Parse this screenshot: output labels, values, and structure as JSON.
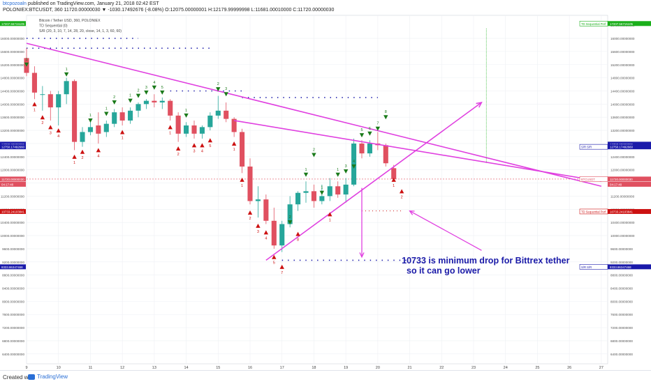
{
  "header": {
    "author": "btcpozoaln",
    "published": "published on TradingView.com, January 21, 2018 02:42 EST",
    "symbol_line": "POLONIEX:BTCUSDT, 360  11720.00000030 ▼ -1030.17492676 (-8.08%) O:12075.00000001 H:12179.99999998 L:11681.00010000 C:11720.00000030"
  },
  "chart": {
    "legend": [
      "Bitcoin / Tether USD, 360, POLONIEX",
      "TD Sequential (0)",
      "S/R (20, 3, 10, 7, 14, 28, 20, close, 14, 1, 3, 60, 60)"
    ],
    "annotation": [
      "10733 is minimum drop for Bittrex tether",
      "so it can go lower"
    ],
    "colors": {
      "bull": "#26a69a",
      "bear": "#e05060",
      "trendline": "#e040e0",
      "annotation": "#1a1aa8",
      "buy_setup": "#cc1111",
      "sell_setup": "#1a7a1a"
    }
  },
  "chart_data": {
    "type": "candlestick",
    "ylim": [
      6100,
      16700
    ],
    "y_ticks": [
      "16000.00000000",
      "15600.00000000",
      "15200.00000000",
      "14800.00000000",
      "14400.00000000",
      "14000.00000000",
      "13600.00000000",
      "13200.00000000",
      "12800.00000000",
      "12400.00000000",
      "12000.00000000",
      "11600.00000000",
      "11200.00000000",
      "10800.00000000",
      "10400.00000000",
      "10000.00000000",
      "9600.00000000",
      "9200.00000000",
      "8800.00000000",
      "8400.00000000",
      "8000.00000000",
      "7600.00000000",
      "7200.00000000",
      "6800.00000000",
      "6400.00000000"
    ],
    "right_y_ticks": [
      "16400.00000000",
      "16000.00000000",
      "15600.00000000",
      "15200.00000000",
      "14800.00000000",
      "14400.00000000",
      "14000.00000000",
      "13600.00000000",
      "13200.00000000",
      "12800.00000000",
      "12400.00000000",
      "12000.00000000",
      "11600.00000000",
      "11200.00000000",
      "10800.00000000",
      "10400.00000000",
      "10000.00000000",
      "9600.00000000",
      "9200.00000000",
      "8800.00000000",
      "8400.00000000",
      "8000.00000000",
      "7600.00000000",
      "7200.00000000",
      "6800.00000000",
      "6400.00000000"
    ],
    "x_ticks": [
      "9",
      "10",
      "11",
      "12",
      "13",
      "14",
      "15",
      "16",
      "17",
      "18",
      "19",
      "20",
      "21",
      "22",
      "23",
      "24",
      "25",
      "26",
      "27"
    ],
    "x_tick_days": [
      9,
      10,
      11,
      12,
      13,
      14,
      15,
      16,
      17,
      18,
      19,
      20,
      21,
      22,
      23,
      24,
      25,
      26,
      27
    ],
    "candles": [
      {
        "day": 9.0,
        "o": 15400,
        "h": 15700,
        "l": 14850,
        "c": 14950
      },
      {
        "day": 9.25,
        "o": 14950,
        "h": 15150,
        "l": 14150,
        "c": 14350
      },
      {
        "day": 9.5,
        "o": 14300,
        "h": 14550,
        "l": 13800,
        "c": 14300
      },
      {
        "day": 9.75,
        "o": 14300,
        "h": 14400,
        "l": 13500,
        "c": 13900
      },
      {
        "day": 10.0,
        "o": 13900,
        "h": 14400,
        "l": 13350,
        "c": 14300
      },
      {
        "day": 10.25,
        "o": 14300,
        "h": 14800,
        "l": 14000,
        "c": 14700
      },
      {
        "day": 10.5,
        "o": 14700,
        "h": 14750,
        "l": 12600,
        "c": 12850
      },
      {
        "day": 10.75,
        "o": 12850,
        "h": 13300,
        "l": 12700,
        "c": 13150
      },
      {
        "day": 11.0,
        "o": 13150,
        "h": 13450,
        "l": 13050,
        "c": 13300
      },
      {
        "day": 11.25,
        "o": 13350,
        "h": 13750,
        "l": 12800,
        "c": 13100
      },
      {
        "day": 11.5,
        "o": 13150,
        "h": 13500,
        "l": 13000,
        "c": 13400
      },
      {
        "day": 11.75,
        "o": 13400,
        "h": 13850,
        "l": 13300,
        "c": 13750
      },
      {
        "day": 12.0,
        "o": 13750,
        "h": 13900,
        "l": 13350,
        "c": 13500
      },
      {
        "day": 12.25,
        "o": 13500,
        "h": 13900,
        "l": 13400,
        "c": 13800
      },
      {
        "day": 12.5,
        "o": 13800,
        "h": 14050,
        "l": 13600,
        "c": 14000
      },
      {
        "day": 12.75,
        "o": 14000,
        "h": 14150,
        "l": 13850,
        "c": 14100
      },
      {
        "day": 13.0,
        "o": 14100,
        "h": 14300,
        "l": 13900,
        "c": 14050
      },
      {
        "day": 13.25,
        "o": 14050,
        "h": 14200,
        "l": 13850,
        "c": 14100
      },
      {
        "day": 13.5,
        "o": 14100,
        "h": 14150,
        "l": 13500,
        "c": 13650
      },
      {
        "day": 13.75,
        "o": 13650,
        "h": 13750,
        "l": 12850,
        "c": 13100
      },
      {
        "day": 14.0,
        "o": 13100,
        "h": 13450,
        "l": 13000,
        "c": 13350
      },
      {
        "day": 14.25,
        "o": 13350,
        "h": 13500,
        "l": 12950,
        "c": 13100
      },
      {
        "day": 14.5,
        "o": 13100,
        "h": 13350,
        "l": 12950,
        "c": 13300
      },
      {
        "day": 14.75,
        "o": 13300,
        "h": 13750,
        "l": 13200,
        "c": 13650
      },
      {
        "day": 15.0,
        "o": 13650,
        "h": 14250,
        "l": 13550,
        "c": 13800
      },
      {
        "day": 15.25,
        "o": 13800,
        "h": 14050,
        "l": 13450,
        "c": 13550
      },
      {
        "day": 15.5,
        "o": 13550,
        "h": 13600,
        "l": 13000,
        "c": 13150
      },
      {
        "day": 15.75,
        "o": 13150,
        "h": 13250,
        "l": 11900,
        "c": 12100
      },
      {
        "day": 16.0,
        "o": 12100,
        "h": 12350,
        "l": 10950,
        "c": 11050
      },
      {
        "day": 16.25,
        "o": 11050,
        "h": 11500,
        "l": 10550,
        "c": 11100
      },
      {
        "day": 16.5,
        "o": 11100,
        "h": 11250,
        "l": 10350,
        "c": 10450
      },
      {
        "day": 16.75,
        "o": 10450,
        "h": 10850,
        "l": 9600,
        "c": 9700
      },
      {
        "day": 17.0,
        "o": 9700,
        "h": 10450,
        "l": 9500,
        "c": 10350
      },
      {
        "day": 17.25,
        "o": 10350,
        "h": 11200,
        "l": 10250,
        "c": 10950
      },
      {
        "day": 17.5,
        "o": 10950,
        "h": 11350,
        "l": 10750,
        "c": 11300
      },
      {
        "day": 17.75,
        "o": 11300,
        "h": 11650,
        "l": 11000,
        "c": 11350
      },
      {
        "day": 18.0,
        "o": 11350,
        "h": 11550,
        "l": 10850,
        "c": 11050
      },
      {
        "day": 18.25,
        "o": 11050,
        "h": 11550,
        "l": 10950,
        "c": 11200
      },
      {
        "day": 18.5,
        "o": 11200,
        "h": 11750,
        "l": 11050,
        "c": 11500
      },
      {
        "day": 18.75,
        "o": 11500,
        "h": 11650,
        "l": 11150,
        "c": 11250
      },
      {
        "day": 19.0,
        "o": 11250,
        "h": 11750,
        "l": 11000,
        "c": 11550
      },
      {
        "day": 19.25,
        "o": 11550,
        "h": 12950,
        "l": 11500,
        "c": 12800
      },
      {
        "day": 19.5,
        "o": 12800,
        "h": 12900,
        "l": 12350,
        "c": 12500
      },
      {
        "day": 19.75,
        "o": 12500,
        "h": 12900,
        "l": 12400,
        "c": 12800
      },
      {
        "day": 20.0,
        "o": 12800,
        "h": 13150,
        "l": 12600,
        "c": 12750
      },
      {
        "day": 20.25,
        "o": 12750,
        "h": 12800,
        "l": 12100,
        "c": 12200
      },
      {
        "day": 20.5,
        "o": 12050,
        "h": 12150,
        "l": 11650,
        "c": 11720
      }
    ],
    "markers": [
      {
        "day": 9.0,
        "y": 15200,
        "t": "sell",
        "n": "1"
      },
      {
        "day": 9.25,
        "y": 14000,
        "t": "buy",
        "n": "1"
      },
      {
        "day": 9.5,
        "y": 13600,
        "t": "buy",
        "n": "2"
      },
      {
        "day": 9.75,
        "y": 13300,
        "t": "buy",
        "n": "3"
      },
      {
        "day": 10.0,
        "y": 13200,
        "t": "buy",
        "n": "4"
      },
      {
        "day": 10.25,
        "y": 14900,
        "t": "sell",
        "n": "1"
      },
      {
        "day": 10.5,
        "y": 12400,
        "t": "buy",
        "n": "1"
      },
      {
        "day": 10.75,
        "y": 12550,
        "t": "buy",
        "n": "2"
      },
      {
        "day": 11.0,
        "y": 13500,
        "t": "sell",
        "n": "1"
      },
      {
        "day": 11.25,
        "y": 12600,
        "t": "buy",
        "n": "4"
      },
      {
        "day": 11.5,
        "y": 13700,
        "t": "sell",
        "n": "1"
      },
      {
        "day": 11.75,
        "y": 14050,
        "t": "sell",
        "n": "2"
      },
      {
        "day": 12.0,
        "y": 13150,
        "t": "buy",
        "n": "1"
      },
      {
        "day": 12.25,
        "y": 14100,
        "t": "sell",
        "n": "1"
      },
      {
        "day": 12.5,
        "y": 14250,
        "t": "sell",
        "n": "2"
      },
      {
        "day": 12.75,
        "y": 14350,
        "t": "sell",
        "n": "3"
      },
      {
        "day": 13.0,
        "y": 14500,
        "t": "sell",
        "n": "4"
      },
      {
        "day": 13.25,
        "y": 14350,
        "t": "sell",
        "n": "5"
      },
      {
        "day": 13.5,
        "y": 13300,
        "t": "buy",
        "n": "1"
      },
      {
        "day": 13.75,
        "y": 12650,
        "t": "buy",
        "n": "2"
      },
      {
        "day": 14.0,
        "y": 13650,
        "t": "sell",
        "n": "1"
      },
      {
        "day": 14.25,
        "y": 12750,
        "t": "buy",
        "n": "3"
      },
      {
        "day": 14.5,
        "y": 12750,
        "t": "buy",
        "n": "4"
      },
      {
        "day": 14.75,
        "y": 12900,
        "t": "buy",
        "n": "5"
      },
      {
        "day": 15.0,
        "y": 14450,
        "t": "sell",
        "n": "2"
      },
      {
        "day": 15.25,
        "y": 14300,
        "t": "sell",
        "n": "3"
      },
      {
        "day": 15.5,
        "y": 12800,
        "t": "buy",
        "n": "1"
      },
      {
        "day": 15.75,
        "y": 11700,
        "t": "buy",
        "n": "1"
      },
      {
        "day": 16.0,
        "y": 10700,
        "t": "buy",
        "n": "2"
      },
      {
        "day": 16.25,
        "y": 10300,
        "t": "buy",
        "n": "3"
      },
      {
        "day": 16.5,
        "y": 10100,
        "t": "buy",
        "n": "4"
      },
      {
        "day": 16.75,
        "y": 9350,
        "t": "buy",
        "n": "5"
      },
      {
        "day": 17.0,
        "y": 9050,
        "t": "buy",
        "n": "7"
      },
      {
        "day": 17.25,
        "y": 10400,
        "t": "sell",
        "n": "2"
      },
      {
        "day": 17.5,
        "y": 10050,
        "t": "buy",
        "n": "8"
      },
      {
        "day": 17.75,
        "y": 11850,
        "t": "sell",
        "n": "1"
      },
      {
        "day": 18.0,
        "y": 12450,
        "t": "sell",
        "n": "2"
      },
      {
        "day": 18.25,
        "y": 11300,
        "t": "sell",
        "n": "1"
      },
      {
        "day": 18.5,
        "y": 10650,
        "t": "buy",
        "n": "1"
      },
      {
        "day": 18.75,
        "y": 11850,
        "t": "sell",
        "n": "1"
      },
      {
        "day": 19.0,
        "y": 11950,
        "t": "sell",
        "n": "3"
      },
      {
        "day": 19.25,
        "y": 12100,
        "t": "sell",
        "n": "4"
      },
      {
        "day": 19.5,
        "y": 13050,
        "t": "sell",
        "n": "5"
      },
      {
        "day": 19.75,
        "y": 13100,
        "t": "sell",
        "n": "6"
      },
      {
        "day": 20.0,
        "y": 13250,
        "t": "sell",
        "n": "7"
      },
      {
        "day": 20.25,
        "y": 13600,
        "t": "sell",
        "n": "8"
      },
      {
        "day": 20.5,
        "y": 11700,
        "t": "buy",
        "n": "1"
      },
      {
        "day": 20.75,
        "y": 11350,
        "t": "buy",
        "n": "2"
      }
    ],
    "trendlines": [
      {
        "x1": 9.0,
        "y1": 15850,
        "x2": 27.0,
        "y2": 11500
      },
      {
        "x1": 15.5,
        "y1": 13500,
        "x2": 27.0,
        "y2": 11650
      },
      {
        "x1": 16.5,
        "y1": 9250,
        "x2": 23.25,
        "y2": 14050
      }
    ],
    "dotted_levels": [
      {
        "x1": 9.0,
        "x2": 12.5,
        "y": 16000
      },
      {
        "x1": 9.0,
        "x2": 14.75,
        "y": 15700
      },
      {
        "x1": 13.5,
        "x2": 15.75,
        "y": 14400
      },
      {
        "x1": 15.75,
        "x2": 20.0,
        "y": 14200
      },
      {
        "x1": 17.0,
        "x2": 21.0,
        "y": 9250
      }
    ],
    "red_dotted": {
      "x1": 19.5,
      "x2": 20.75,
      "y": 10750
    },
    "green_dots": {
      "x": 23.4,
      "from": 12200,
      "to": 16300
    },
    "price_line": 11720,
    "arrows": [
      {
        "x1": 19.5,
        "y1": 11450,
        "x2": 19.5,
        "y2": 9350
      },
      {
        "x1": 23.25,
        "y1": 9550,
        "x2": 21.0,
        "y2": 10750
      }
    ],
    "left_labels": [
      {
        "y": 16450,
        "text": "17207.56715105",
        "bg": "#1aaf1a"
      },
      {
        "y": 12780,
        "text": "12798.99999996",
        "bg": "#1a1aaa"
      },
      {
        "y": 12700,
        "text": "12750.17492660",
        "bg": "#1a1aaa"
      },
      {
        "y": 11720,
        "text": "11720.00000030",
        "bg": "#e05060"
      },
      {
        "y": 11560,
        "text": "04:17:48",
        "bg": "#e05060"
      },
      {
        "y": 10733,
        "text": "10733.24103841",
        "bg": "#cc1111"
      },
      {
        "y": 9050,
        "text": "8333.86347468",
        "bg": "#1a1aaa"
      }
    ],
    "right_labels": [
      {
        "y": 16450,
        "text": "TD Sequential Perf",
        "value": "17207.56715105",
        "bg": "#1aaf1a"
      },
      {
        "y": 12780,
        "text": "",
        "value": "12798.99999996",
        "bg": "#1a1aaa"
      },
      {
        "y": 12700,
        "text": "S/R S/R",
        "value": "12750.17492660",
        "bg": "#1a1aaa"
      },
      {
        "y": 11720,
        "text": "BTCUSDT",
        "value": "11720.00000030",
        "bg": "#e05060"
      },
      {
        "y": 11560,
        "text": "",
        "value": "04:17:48",
        "bg": "#e05060"
      },
      {
        "y": 10733,
        "text": "TD Sequential Perf",
        "value": "10733.24103841",
        "bg": "#cc1111"
      },
      {
        "y": 9050,
        "text": "S/R S/R",
        "value": "8333.86347468",
        "bg": "#1a1aaa"
      }
    ]
  },
  "footer": {
    "created": "Created with",
    "brand": "TradingView"
  }
}
